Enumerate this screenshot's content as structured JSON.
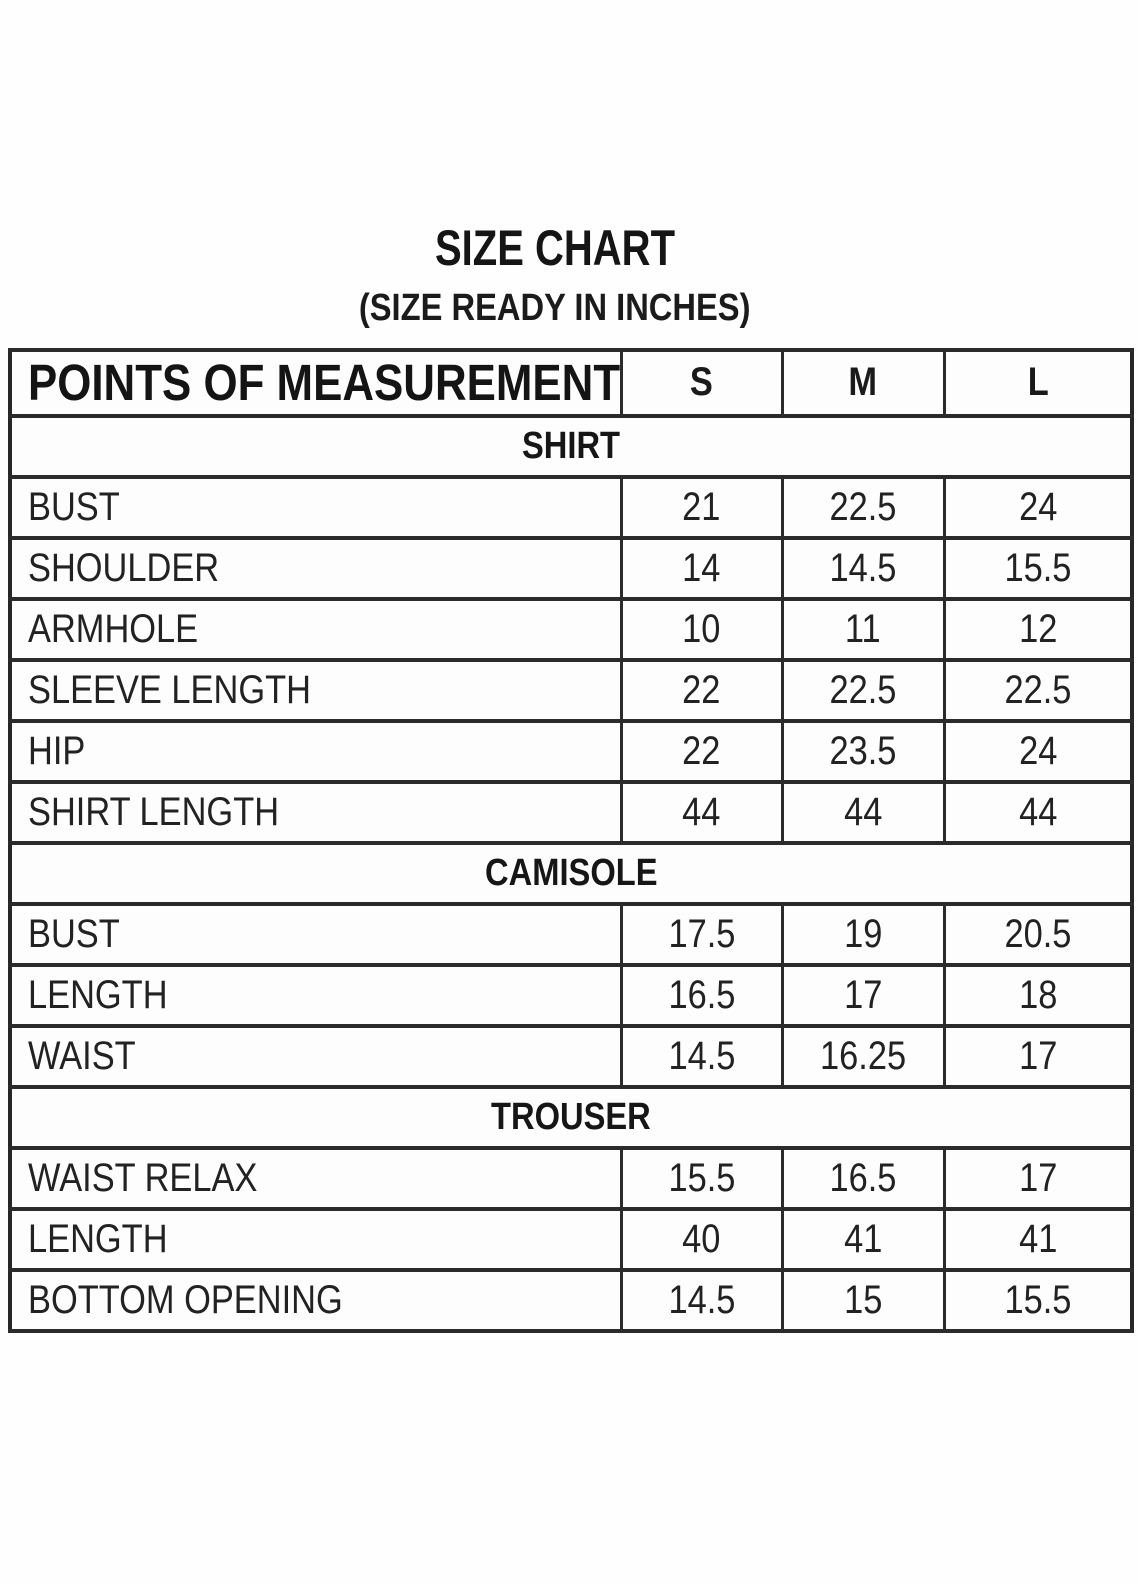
{
  "page": {
    "title": "SIZE CHART",
    "subtitle": "(SIZE READY IN INCHES)"
  },
  "colors": {
    "background": "#fefefe",
    "text": "#1a1a1a",
    "border": "#2b2b2b"
  },
  "chart_data": {
    "type": "table",
    "title": "SIZE CHART",
    "subtitle": "(SIZE READY IN INCHES)",
    "unit": "inches",
    "columns": [
      "POINTS OF MEASUREMENT",
      "S",
      "M",
      "L"
    ],
    "sections": [
      {
        "name": "SHIRT",
        "rows": [
          {
            "label": "BUST",
            "values": [
              "21",
              "22.5",
              "24"
            ]
          },
          {
            "label": "SHOULDER",
            "values": [
              "14",
              "14.5",
              "15.5"
            ]
          },
          {
            "label": "ARMHOLE",
            "values": [
              "10",
              "11",
              "12"
            ]
          },
          {
            "label": "SLEEVE LENGTH",
            "values": [
              "22",
              "22.5",
              "22.5"
            ]
          },
          {
            "label": "HIP",
            "values": [
              "22",
              "23.5",
              "24"
            ]
          },
          {
            "label": "SHIRT LENGTH",
            "values": [
              "44",
              "44",
              "44"
            ]
          }
        ]
      },
      {
        "name": "CAMISOLE",
        "rows": [
          {
            "label": "BUST",
            "values": [
              "17.5",
              "19",
              "20.5"
            ]
          },
          {
            "label": "LENGTH",
            "values": [
              "16.5",
              "17",
              "18"
            ]
          },
          {
            "label": "WAIST",
            "values": [
              "14.5",
              "16.25",
              "17"
            ]
          }
        ]
      },
      {
        "name": "TROUSER",
        "rows": [
          {
            "label": "WAIST RELAX",
            "values": [
              "15.5",
              "16.5",
              "17"
            ]
          },
          {
            "label": "LENGTH",
            "values": [
              "40",
              "41",
              "41"
            ]
          },
          {
            "label": "BOTTOM OPENING",
            "values": [
              "14.5",
              "15",
              "15.5"
            ]
          }
        ]
      }
    ]
  }
}
